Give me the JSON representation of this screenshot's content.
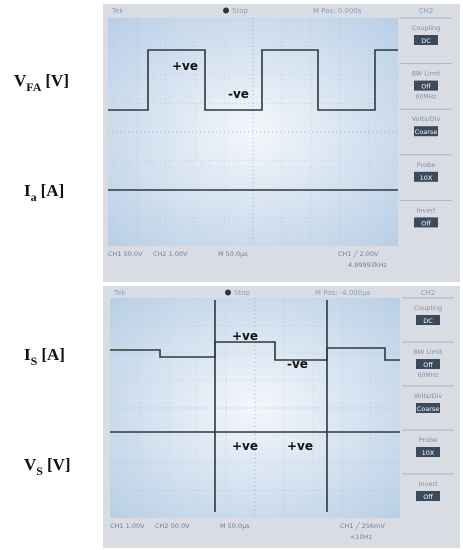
{
  "labels": [
    {
      "main": "V",
      "sub": "FA",
      "unit": "[V]"
    },
    {
      "main": "I",
      "sub": "a",
      "unit": "[A]"
    },
    {
      "main": "I",
      "sub": "S",
      "unit": "[A]"
    },
    {
      "main": "V",
      "sub": "S",
      "unit": "[V]"
    }
  ],
  "scopes": [
    {
      "header": {
        "brand": "Tek",
        "state": "Stop",
        "position": "M Pos: 0.000s",
        "channel": "CH2"
      },
      "menu": [
        {
          "title": "Coupling",
          "value": "DC"
        },
        {
          "title": "BW Limit",
          "value": "Off",
          "note": "60MHz"
        },
        {
          "title": "Volts/Div",
          "value": "Coarse"
        },
        {
          "title": "Probe",
          "value": "10X"
        },
        {
          "title": "Invert",
          "value": "Off"
        }
      ],
      "footer": {
        "ch1": "CH1 50.0V",
        "ch2": "CH2 1.00V",
        "timebase": "M 50.0µs",
        "trigger": "CH1 ╱ 2.00V",
        "frequency": "4.99993kHz"
      },
      "annotations": [
        "+ve",
        "-ve"
      ]
    },
    {
      "header": {
        "brand": "Tek",
        "state": "Stop",
        "position": "M Pos: -4.000µs",
        "channel": "CH2"
      },
      "menu": [
        {
          "title": "Coupling",
          "value": "DC"
        },
        {
          "title": "BW Limit",
          "value": "Off",
          "note": "60MHz"
        },
        {
          "title": "Volts/Div",
          "value": "Coarse"
        },
        {
          "title": "Probe",
          "value": "10X"
        },
        {
          "title": "Invert",
          "value": "Off"
        }
      ],
      "footer": {
        "ch1": "CH1 1.00V",
        "ch2": "CH2 50.0V",
        "timebase": "M 50.0µs",
        "trigger": "CH1 ╱ 256mV",
        "frequency": "<10Hz"
      },
      "annotations": [
        "+ve",
        "-ve",
        "+ve",
        "+ve"
      ]
    }
  ]
}
